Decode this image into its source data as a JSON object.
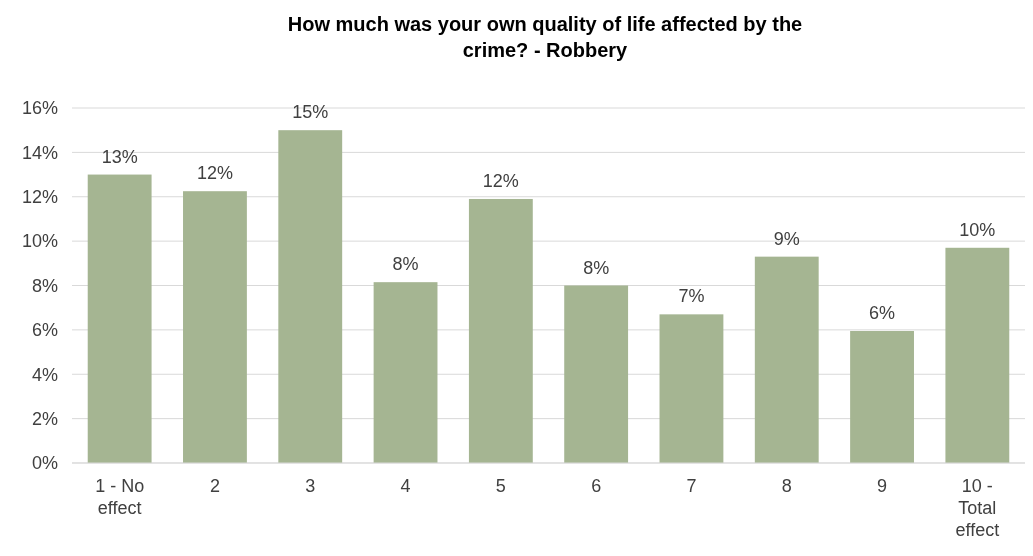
{
  "chart_data": {
    "type": "bar",
    "title": "How much was your own quality of life affected by the crime? - Robbery",
    "categories": [
      "1 - No effect",
      "2",
      "3",
      "4",
      "5",
      "6",
      "7",
      "8",
      "9",
      "10 - Total effect"
    ],
    "values": [
      13.0,
      12.25,
      15.0,
      8.15,
      11.9,
      8.0,
      6.7,
      9.3,
      5.95,
      9.7
    ],
    "value_labels": [
      "13%",
      "12%",
      "15%",
      "8%",
      "12%",
      "8%",
      "7%",
      "9%",
      "6%",
      "10%"
    ],
    "color": "#a5b592",
    "ylim": [
      0,
      16
    ],
    "yticks": [
      {
        "value": 0,
        "label": "0%"
      },
      {
        "value": 2,
        "label": "2%"
      },
      {
        "value": 4,
        "label": "4%"
      },
      {
        "value": 6,
        "label": "6%"
      },
      {
        "value": 8,
        "label": "8%"
      },
      {
        "value": 10,
        "label": "10%"
      },
      {
        "value": 12,
        "label": "12%"
      },
      {
        "value": 14,
        "label": "14%"
      },
      {
        "value": 16,
        "label": "16%"
      }
    ],
    "grid": "y"
  }
}
